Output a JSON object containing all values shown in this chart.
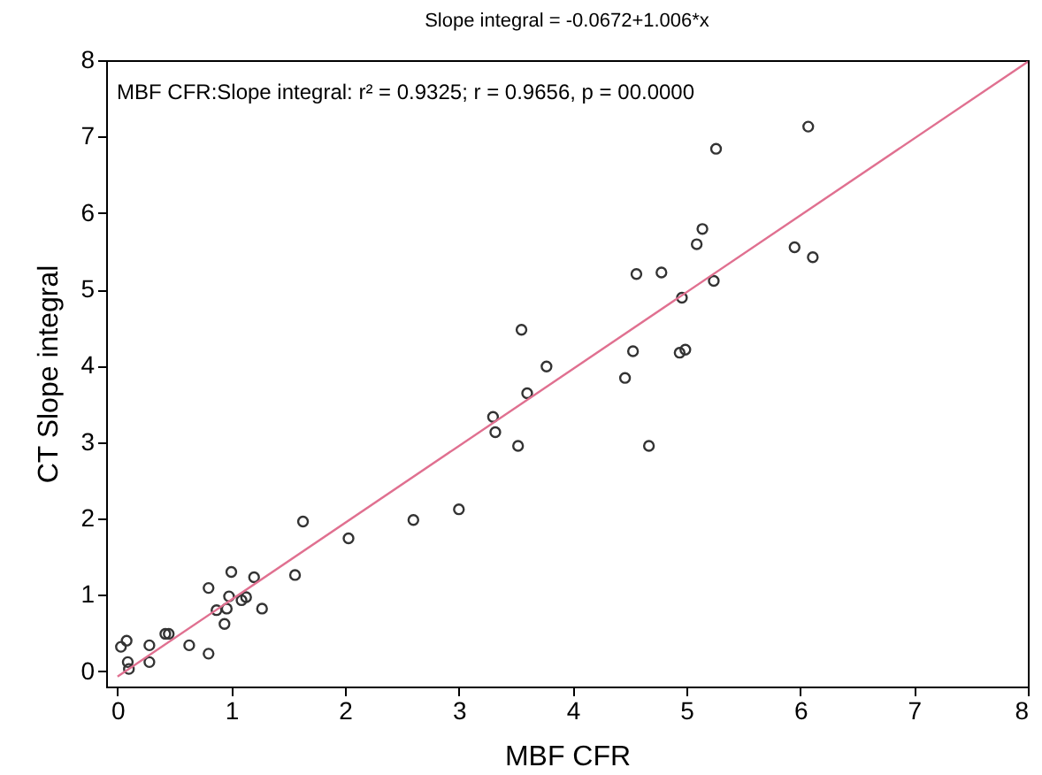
{
  "chart_data": {
    "type": "scatter",
    "title": "Slope integral = -0.0672+1.006*x",
    "xlabel": "MBF CFR",
    "ylabel": "CT Slope integral",
    "annotations": [
      "MBF CFR:Slope integral:  r² = 0.9325;  r = 0.9656, p = 00.0000"
    ],
    "xlim": [
      -0.1,
      8
    ],
    "ylim": [
      -0.2,
      8
    ],
    "xticks": [
      0,
      1,
      2,
      3,
      4,
      5,
      6,
      7,
      8
    ],
    "yticks": [
      0,
      1,
      2,
      3,
      4,
      5,
      6,
      7,
      8
    ],
    "series": [
      {
        "marker": "circle",
        "color": "#333333",
        "x": [
          3.77,
          3.6,
          3.3,
          3.32,
          3.52,
          3.0,
          2.6,
          2.03,
          1.63,
          1.56,
          1.0,
          1.2,
          0.8,
          0.98,
          1.13,
          1.09,
          0.87,
          0.96,
          1.27,
          0.94,
          0.42,
          0.45,
          0.63,
          0.8,
          0.28,
          0.28,
          0.03,
          0.08,
          0.09,
          0.1,
          6.07,
          5.26,
          5.14,
          5.09,
          5.95,
          6.11,
          4.56,
          4.78,
          5.24,
          4.96,
          4.53,
          4.94,
          4.99,
          4.46,
          3.55,
          4.67
        ],
        "values": [
          3.99,
          3.64,
          3.33,
          3.13,
          2.95,
          2.12,
          1.98,
          1.74,
          1.96,
          1.26,
          1.3,
          1.23,
          1.09,
          0.98,
          0.97,
          0.93,
          0.8,
          0.82,
          0.82,
          0.62,
          0.49,
          0.49,
          0.34,
          0.23,
          0.34,
          0.12,
          0.32,
          0.4,
          0.12,
          0.03,
          7.13,
          6.84,
          5.79,
          5.59,
          5.55,
          5.42,
          5.2,
          5.22,
          5.11,
          4.89,
          4.19,
          4.17,
          4.21,
          3.84,
          4.47,
          2.95
        ]
      },
      {
        "type": "line",
        "marker": "none",
        "color": "#e07090",
        "x": [
          0,
          8
        ],
        "values": [
          -0.07,
          7.98
        ]
      }
    ]
  }
}
